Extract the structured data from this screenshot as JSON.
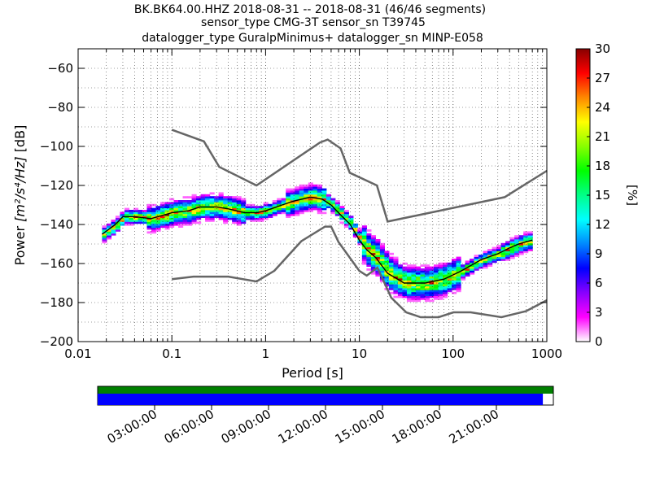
{
  "header": {
    "title_lines": [
      "BK.BK64.00.HHZ   2018-08-31 -- 2018-08-31  (46/46 segments)",
      "sensor_type CMG-3T sensor_sn T39745",
      "datalogger_type GuralpMinimus+ datalogger_sn MINP-E058"
    ]
  },
  "chart_data": {
    "type": "heatmap",
    "subtype": "probabilistic power spectral density",
    "xscale": "log",
    "xlim": [
      0.01,
      1000
    ],
    "ylim": [
      -200,
      -50
    ],
    "xlabel": "Period [s]",
    "ylabel_prefix": "Power ",
    "ylabel_units": "[m²/s⁴/Hz]",
    "ylabel_suffix": " [dB]",
    "x_ticks": [
      0.01,
      0.1,
      1,
      10,
      100,
      1000
    ],
    "x_tick_labels": [
      "0.01",
      "0.1",
      "1",
      "10",
      "100",
      "1000"
    ],
    "y_ticks": [
      -60,
      -80,
      -100,
      -120,
      -140,
      -160,
      -180,
      -200
    ],
    "y_tick_labels": [
      "−60",
      "−80",
      "−100",
      "−120",
      "−140",
      "−160",
      "−180",
      "−200"
    ],
    "grid": true,
    "colorbar": {
      "label": "[%]",
      "range": [
        0,
        30
      ],
      "ticks": [
        0,
        3,
        6,
        9,
        12,
        15,
        18,
        21,
        24,
        27,
        30
      ],
      "tick_labels": [
        "0",
        "3",
        "6",
        "9",
        "12",
        "15",
        "18",
        "21",
        "24",
        "27",
        "30"
      ],
      "colormap": [
        "#ffffff",
        "#ff00ff",
        "#8800ff",
        "#0000ff",
        "#0088ff",
        "#00ffff",
        "#00ff88",
        "#00ff00",
        "#88ff00",
        "#ffff00",
        "#ff8800",
        "#ff0000",
        "#880000"
      ]
    },
    "noise_models": [
      {
        "name": "NHNM",
        "period": [
          0.1,
          0.22,
          0.32,
          0.8,
          3.8,
          4.6,
          6.3,
          7.9,
          15.4,
          20,
          354.8,
          1000
        ],
        "power": [
          -91.5,
          -97.4,
          -110.5,
          -120,
          -98,
          -96.5,
          -101,
          -113.5,
          -120,
          -138.5,
          -126,
          -112.5
        ]
      },
      {
        "name": "NLNM",
        "period": [
          0.1,
          0.17,
          0.4,
          0.8,
          1.24,
          2.4,
          4.3,
          5,
          6,
          10,
          12,
          15.6,
          21.9,
          31.6,
          45,
          70,
          101,
          154,
          328,
          600,
          1000
        ],
        "power": [
          -168,
          -166.7,
          -166.7,
          -169.2,
          -163.7,
          -148.6,
          -141.1,
          -141.1,
          -149,
          -163.8,
          -166.2,
          -162.1,
          -177.5,
          -185,
          -187.5,
          -187.5,
          -185,
          -185,
          -187.5,
          -184.4,
          -178.8
        ]
      }
    ],
    "mode_curve": {
      "period": [
        0.018,
        0.025,
        0.03,
        0.04,
        0.06,
        0.1,
        0.15,
        0.2,
        0.3,
        0.4,
        0.6,
        0.8,
        1,
        1.5,
        2,
        3,
        4,
        5,
        6,
        8,
        10,
        12,
        15,
        20,
        30,
        50,
        80,
        120,
        200,
        300,
        400,
        500,
        700
      ],
      "power": [
        -145,
        -140,
        -136,
        -136,
        -137,
        -134,
        -133,
        -131,
        -131,
        -132,
        -134,
        -134,
        -133,
        -130,
        -128,
        -126,
        -127,
        -130,
        -134,
        -140,
        -148,
        -153,
        -157,
        -165,
        -170,
        -170,
        -168,
        -164,
        -158,
        -155,
        -152,
        -150,
        -148
      ]
    },
    "time_axis": {
      "tick_labels": [
        "03:00:00",
        "06:00:00",
        "09:00:00",
        "12:00:00",
        "15:00:00",
        "18:00:00",
        "21:00:00"
      ],
      "coverage_fraction": 0.977,
      "colors": {
        "data_available": "#008000",
        "psd_segments": "#0000ff"
      }
    }
  }
}
